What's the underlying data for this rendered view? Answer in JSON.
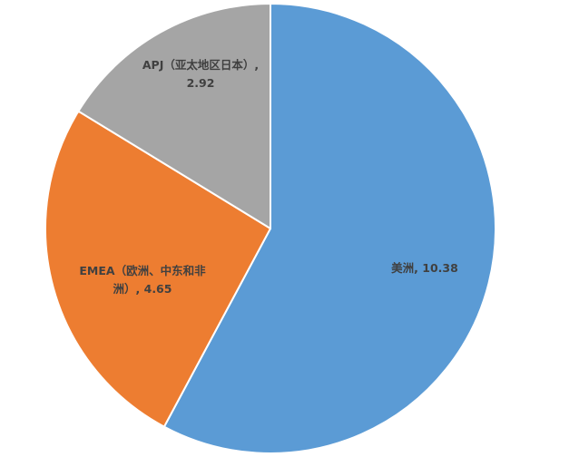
{
  "chart_data": {
    "type": "pie",
    "title": "",
    "legend": "none",
    "start_angle_deg": 0,
    "direction": "clockwise",
    "slices": [
      {
        "label": "美洲",
        "value": 10.38,
        "color": "#5B9BD5",
        "data_label_lines": [
          "美洲, 10.38"
        ]
      },
      {
        "label": "EMEA（欧洲、中东和非洲）",
        "value": 4.65,
        "color": "#ED7D31",
        "data_label_lines": [
          "EMEA（欧洲、中东和非",
          "洲）, 4.65"
        ]
      },
      {
        "label": "APJ（亚太地区日本）",
        "value": 2.92,
        "color": "#A5A5A5",
        "data_label_lines": [
          "APJ（亚太地区日本）,",
          "2.92"
        ]
      }
    ]
  }
}
